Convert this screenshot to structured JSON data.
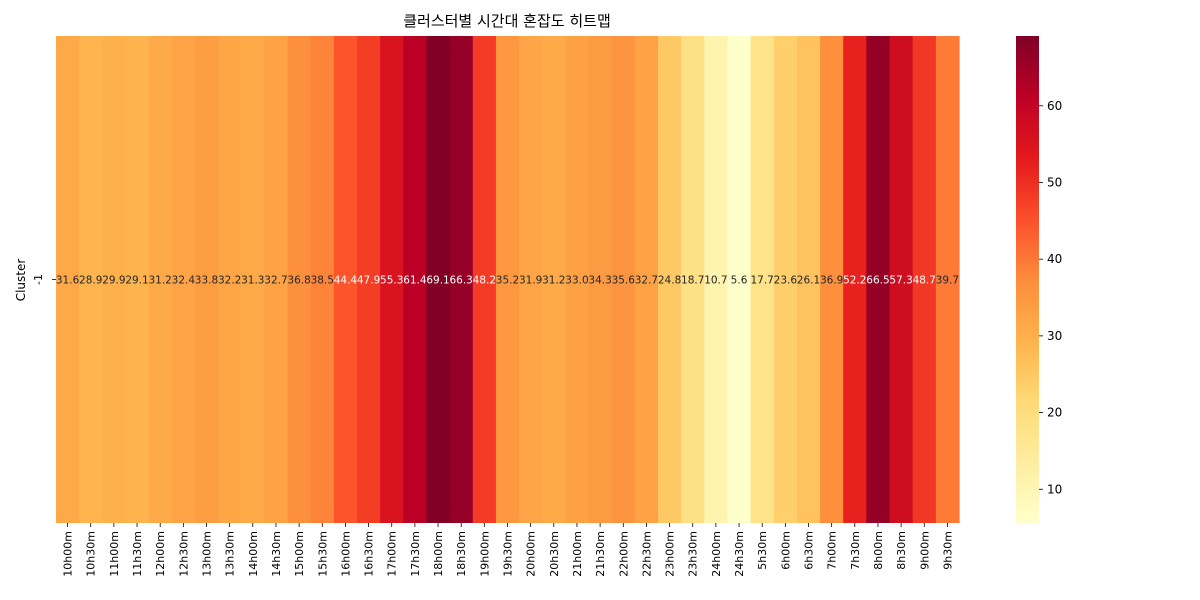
{
  "chart_data": {
    "type": "heatmap",
    "title": "클러스터별 시간대 혼잡도 히트맵",
    "xlabel": "",
    "ylabel": "Cluster",
    "rows": [
      "-1"
    ],
    "columns": [
      "10h00m",
      "10h30m",
      "11h00m",
      "11h30m",
      "12h00m",
      "12h30m",
      "13h00m",
      "13h30m",
      "14h00m",
      "14h30m",
      "15h00m",
      "15h30m",
      "16h00m",
      "16h30m",
      "17h00m",
      "17h30m",
      "18h00m",
      "18h30m",
      "19h00m",
      "19h30m",
      "20h00m",
      "20h30m",
      "21h00m",
      "21h30m",
      "22h00m",
      "22h30m",
      "23h00m",
      "23h30m",
      "24h00m",
      "24h30m",
      "5h30m",
      "6h00m",
      "6h30m",
      "7h00m",
      "7h30m",
      "8h00m",
      "8h30m",
      "9h00m",
      "9h30m"
    ],
    "values": [
      [
        31.6,
        28.9,
        29.9,
        29.1,
        31.2,
        32.4,
        33.8,
        32.2,
        31.3,
        32.7,
        36.8,
        38.5,
        44.4,
        47.9,
        55.3,
        61.4,
        69.1,
        66.3,
        48.2,
        35.2,
        31.9,
        31.2,
        33.0,
        34.3,
        35.6,
        32.7,
        24.8,
        18.7,
        10.7,
        5.6,
        17.7,
        23.6,
        26.1,
        36.9,
        52.2,
        66.5,
        57.3,
        48.7,
        39.7
      ]
    ],
    "labels": [
      [
        "31.6",
        "28.9",
        "29.9",
        "29.1",
        "31.2",
        "32.4",
        "33.8",
        "32.2",
        "31.3",
        "32.7",
        "36.8",
        "38.5",
        "44.4",
        "47.9",
        "55.3",
        "61.4",
        "69.1",
        "66.3",
        "48.2",
        "35.2",
        "31.9",
        "31.2",
        "33.0",
        "34.3",
        "35.6",
        "32.7",
        "24.8",
        "18.7",
        "10.7",
        "5.6",
        "17.7",
        "23.6",
        "26.1",
        "36.9",
        "52.2",
        "66.5",
        "57.3",
        "48.7",
        "39.7"
      ]
    ],
    "colormap": "YlOrRd",
    "vmin": 5.6,
    "vmax": 69.1,
    "colorbar_ticks": [
      10,
      20,
      30,
      40,
      50,
      60
    ],
    "colorbar_tick_labels": [
      "10",
      "20",
      "30",
      "40",
      "50",
      "60"
    ]
  }
}
